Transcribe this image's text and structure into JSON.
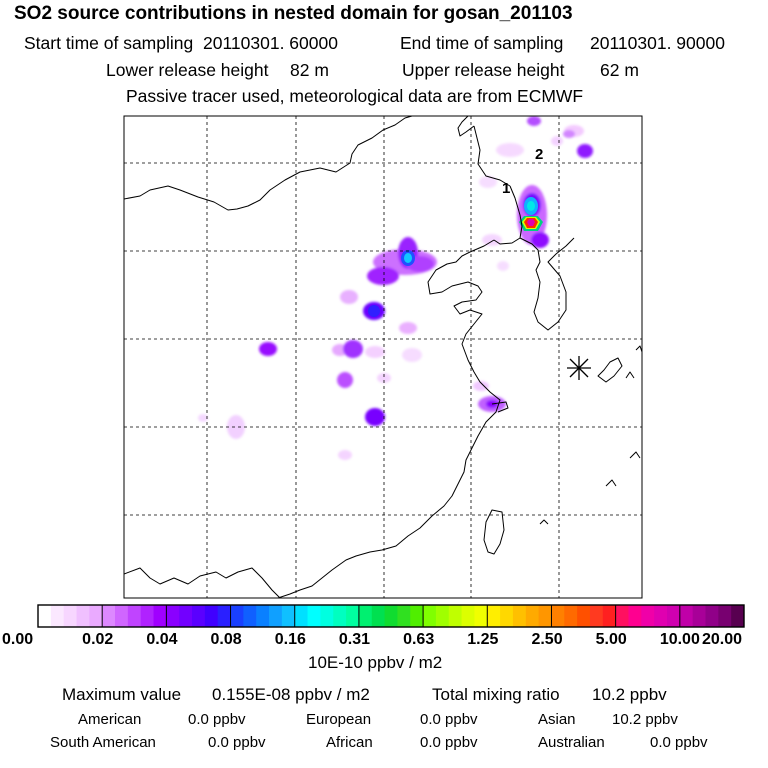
{
  "title": "SO2 source contributions in nested domain for gosan_201103",
  "header": {
    "start_label": "Start time of sampling",
    "start_value": "20110301. 60000",
    "end_label": "End time of sampling",
    "end_value": "20110301. 90000",
    "lower_label": "Lower release height",
    "lower_value": "82 m",
    "upper_label": "Upper release height",
    "upper_value": "62 m",
    "note": "Passive tracer used, meteorological data are from ECMWF"
  },
  "map": {
    "receptor_symbol": "gosan-receptor",
    "labels": [
      {
        "text": "1"
      },
      {
        "text": "2"
      }
    ]
  },
  "colorbar": {
    "ticks": [
      "0.00",
      "0.02",
      "0.04",
      "0.08",
      "0.16",
      "0.31",
      "0.63",
      "1.25",
      "2.50",
      "5.00",
      "10.00",
      "20.00"
    ],
    "colors": [
      [
        "#ffffff",
        "#fbe8ff",
        "#f7d6ff",
        "#f0c0ff",
        "#eaaaff"
      ],
      [
        "#dd88ff",
        "#d066ff",
        "#c044ff",
        "#b022ff",
        "#a000ff"
      ],
      [
        "#8a00ff",
        "#7200ff",
        "#5a00ff",
        "#4000ff",
        "#2a20ff"
      ],
      [
        "#1a40ff",
        "#1060ff",
        "#0a80ff",
        "#10a0ff",
        "#10c0ff"
      ],
      [
        "#00e0ff",
        "#00ffff",
        "#00ffe0",
        "#00ffc0",
        "#00ffa0"
      ],
      [
        "#00f070",
        "#00e050",
        "#10dc30",
        "#30e020",
        "#50ee00"
      ],
      [
        "#80ff00",
        "#a0ff00",
        "#c0ff00",
        "#dcff00",
        "#f0ff00"
      ],
      [
        "#ffee00",
        "#ffd800",
        "#ffc000",
        "#ffaa00",
        "#ff9600"
      ],
      [
        "#ff8000",
        "#ff6a00",
        "#ff5000",
        "#ff3a20",
        "#ff2020"
      ],
      [
        "#ff1060",
        "#ff0090",
        "#f000a8",
        "#e000b0",
        "#d000b0"
      ],
      [
        "#c000a8",
        "#a80098",
        "#900088",
        "#780070",
        "#580050"
      ]
    ],
    "unit": "10E-10 ppbv / m2"
  },
  "stats": {
    "max_label": "Maximum value",
    "max_value": "0.155E-08 ppbv / m2",
    "total_label": "Total mixing ratio",
    "total_value": "10.2 ppbv",
    "regions": [
      {
        "name": "American",
        "value": "0.0 ppbv"
      },
      {
        "name": "European",
        "value": "0.0 ppbv"
      },
      {
        "name": "Asian",
        "value": "10.2 ppbv"
      },
      {
        "name": "South American",
        "value": "0.0 ppbv"
      },
      {
        "name": "African",
        "value": "0.0 ppbv"
      },
      {
        "name": "Australian",
        "value": "0.0 ppbv"
      }
    ]
  }
}
